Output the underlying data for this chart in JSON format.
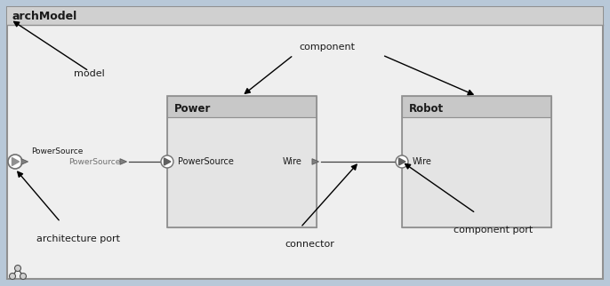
{
  "bg_outer": "#b8c8d8",
  "bg_inner": "#efefef",
  "title_bar_color": "#d0d0d0",
  "component_header_color": "#c8c8c8",
  "component_body_color": "#e4e4e4",
  "line_color": "#404040",
  "text_color": "#1a1a1a",
  "arch_title": "archModel",
  "model_label": "model",
  "component_label": "component",
  "connector_label": "connector",
  "arch_port_label": "architecture port",
  "comp_port_label": "component port",
  "power_title": "Power",
  "robot_title": "Robot",
  "outer_port_label": "PowerSource",
  "inner_ps_label": "PowerSource",
  "wire_label": "Wire",
  "fig_width": 6.86,
  "fig_height": 3.22,
  "dpi": 100
}
